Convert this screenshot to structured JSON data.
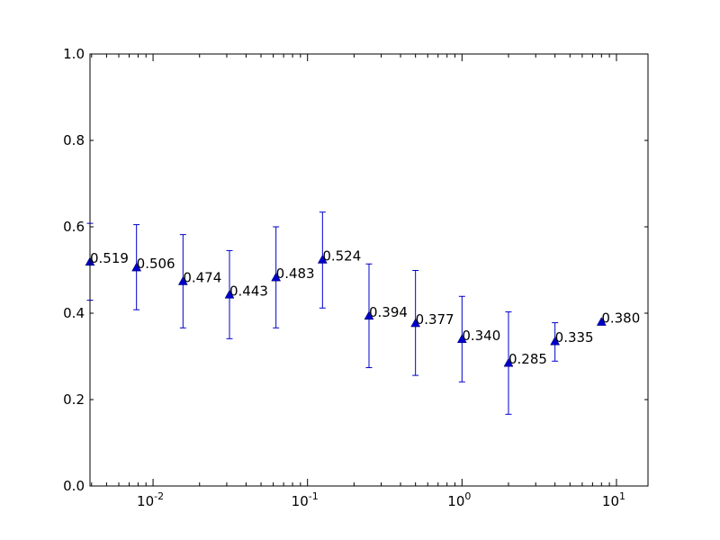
{
  "chart_data": {
    "type": "scatter",
    "title": "",
    "xlabel": "",
    "ylabel": "",
    "xscale": "log",
    "xlim": [
      0.00390625,
      16
    ],
    "ylim": [
      0.0,
      1.0
    ],
    "grid": false,
    "legend": "none",
    "marker": "triangle-up",
    "color": "#0000cc",
    "x": [
      0.00390625,
      0.0078125,
      0.015625,
      0.03125,
      0.0625,
      0.125,
      0.25,
      0.5,
      1,
      2,
      4,
      8
    ],
    "y": [
      0.519,
      0.506,
      0.474,
      0.443,
      0.483,
      0.524,
      0.394,
      0.377,
      0.34,
      0.285,
      0.335,
      0.38
    ],
    "yerr_low": [
      0.43,
      0.408,
      0.366,
      0.341,
      0.366,
      0.412,
      0.274,
      0.256,
      0.241,
      0.166,
      0.289,
      0.38
    ],
    "yerr_high": [
      0.608,
      0.605,
      0.582,
      0.545,
      0.6,
      0.634,
      0.514,
      0.499,
      0.439,
      0.403,
      0.378,
      0.38
    ],
    "point_labels": [
      "0.519",
      "0.506",
      "0.474",
      "0.443",
      "0.483",
      "0.524",
      "0.394",
      "0.377",
      "0.340",
      "0.285",
      "0.335",
      "0.380"
    ],
    "y_ticks": [
      {
        "value": 0.0,
        "label": "0.0"
      },
      {
        "value": 0.2,
        "label": "0.2"
      },
      {
        "value": 0.4,
        "label": "0.4"
      },
      {
        "value": 0.6,
        "label": "0.6"
      },
      {
        "value": 0.8,
        "label": "0.8"
      },
      {
        "value": 1.0,
        "label": "1.0"
      }
    ],
    "x_ticks": [
      {
        "value": 0.01,
        "base": "10",
        "exp": "-2"
      },
      {
        "value": 0.1,
        "base": "10",
        "exp": "-1"
      },
      {
        "value": 1,
        "base": "10",
        "exp": "0"
      },
      {
        "value": 10,
        "base": "10",
        "exp": "1"
      }
    ]
  }
}
